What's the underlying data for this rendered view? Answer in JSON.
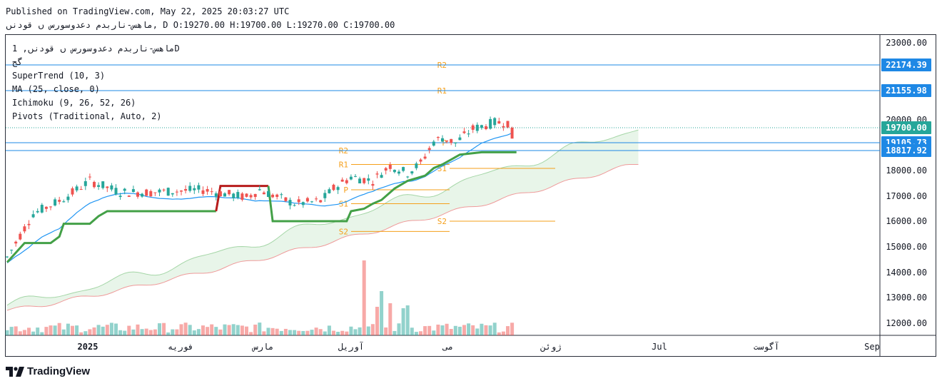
{
  "header": {
    "published": "Published on TradingView.com, May 22, 2025 20:03:27 UTC",
    "symbol_line": "ماهس-ناربدم دعدوسورس ں قودنں, D O:19270.00 H:19700.00 L:19270.00 C:19700.00"
  },
  "legend": {
    "symbol": "ماهس-ناربدم دعدوسورس ں قودنں, 1D",
    "symbol_sub": "گج",
    "supertrend": "SuperTrend (10, 3)",
    "ma": "MA (25, close, 0)",
    "ichimoku": "Ichimoku (9, 26, 52, 26)",
    "pivots": "Pivots (Traditional, Auto, 2)"
  },
  "branding": {
    "logo_text": "TradingView"
  },
  "colors": {
    "up": "#26a69a",
    "down": "#ef5350",
    "supertrend": "#43a047",
    "supertrend_down": "#b71c1c",
    "ma": "#2196f3",
    "pivot": "#f59f1a",
    "cloud_fill": "#e8f5e9",
    "cloud_edge_a": "#a5d6a7",
    "cloud_edge_b": "#ef9a9a",
    "hline": "#2962ff",
    "price_tag": "#1e88e5",
    "last_tag": "#26a69a"
  },
  "chart_data": {
    "type": "candlestick",
    "title": "ماهس-ناربدم دعدوسورس ں قودنں, 1D",
    "ylim": [
      11500,
      23500
    ],
    "y_ticks": [
      "23000.00",
      "20000.00",
      "18000.00",
      "17000.00",
      "16000.00",
      "15000.00",
      "14000.00",
      "13000.00",
      "12000.00"
    ],
    "x_ticks": [
      "2025",
      "فوریه",
      "مارس",
      "آوریل",
      "می",
      "ژوئن",
      "Jul",
      "آگوست",
      "Sep"
    ],
    "price_tags": [
      {
        "label": "22174.39",
        "value": 22174.39,
        "color": "#1e88e5"
      },
      {
        "label": "21155.98",
        "value": 21155.98,
        "color": "#1e88e5"
      },
      {
        "label": "19700.00",
        "value": 19700.0,
        "color": "#26a69a"
      },
      {
        "label": "19105.73",
        "value": 19105.73,
        "color": "#1e88e5"
      },
      {
        "label": "18817.92",
        "value": 18817.92,
        "color": "#1e88e5"
      }
    ],
    "pivots_current": [
      {
        "label": "R2",
        "value": 22174
      },
      {
        "label": "R1",
        "value": 21156
      },
      {
        "label": "P",
        "value": 19106
      },
      {
        "label": "S1",
        "value": 18088
      },
      {
        "label": "S2",
        "value": 16000
      }
    ],
    "pivots_previous": [
      {
        "label": "R2",
        "value": 18818
      },
      {
        "label": "R1",
        "value": 18250
      },
      {
        "label": "P",
        "value": 17250
      },
      {
        "label": "S1",
        "value": 16700
      },
      {
        "label": "S2",
        "value": 15600
      }
    ],
    "last": {
      "open": 19270,
      "high": 19700,
      "low": 19270,
      "close": 19700
    }
  }
}
